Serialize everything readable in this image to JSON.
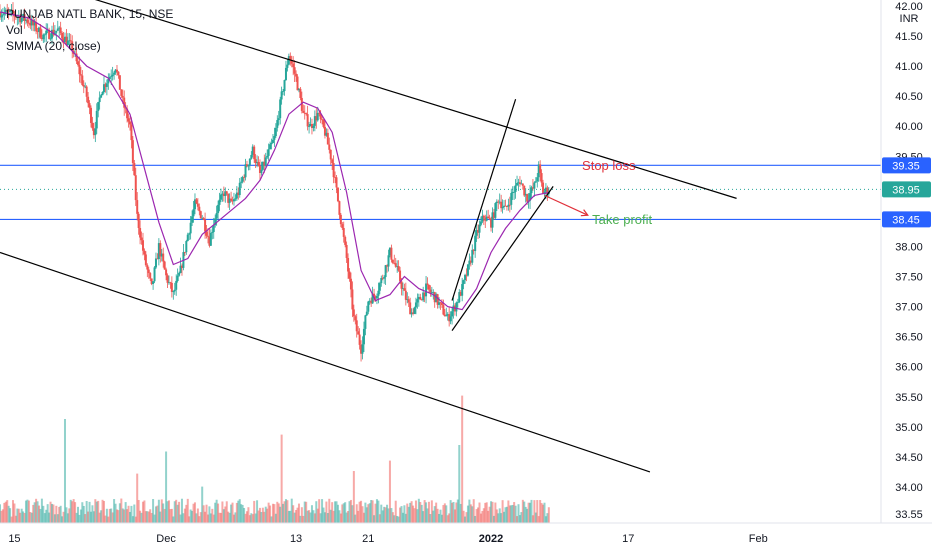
{
  "legend": {
    "symbol": "PUNJAB NATL BANK, 15, NSE",
    "vol": "Vol",
    "smma": "SMMA (20, close)"
  },
  "colors": {
    "up": "#26a69a",
    "down": "#ef5350",
    "smma": "#9c27b0",
    "hline": "#2962ff",
    "trend": "#000000",
    "stop_loss": "#e0303a",
    "take_profit": "#4caf50",
    "arrow": "#e0303a",
    "current_badge": "#26a69a",
    "level_badge": "#2962ff"
  },
  "chart_data": {
    "type": "candlestick",
    "price_axis": {
      "unit": "INR",
      "ticks": [
        "42.00",
        "41.50",
        "41.00",
        "40.50",
        "40.00",
        "39.50",
        "39.00",
        "38.50",
        "38.00",
        "37.50",
        "37.00",
        "36.50",
        "36.00",
        "35.50",
        "35.00",
        "34.50",
        "34.00",
        "33.55"
      ],
      "tick_values": [
        42.0,
        41.5,
        41.0,
        40.5,
        40.0,
        39.5,
        39.0,
        38.5,
        38.0,
        37.5,
        37.0,
        36.5,
        36.0,
        35.5,
        35.0,
        34.5,
        34.0,
        33.55
      ],
      "range": [
        33.4,
        42.1
      ]
    },
    "time_axis": {
      "labels": [
        "15",
        "Dec",
        "13",
        "21",
        "2022",
        "17",
        "Feb"
      ],
      "positions": [
        0,
        10.5,
        19.5,
        24.5,
        33,
        42.5,
        51.5
      ],
      "range": [
        -1,
        60
      ]
    },
    "price_badges": [
      {
        "label": "39.35",
        "value": 39.35,
        "kind": "level"
      },
      {
        "label": "38.95",
        "value": 38.95,
        "kind": "current"
      },
      {
        "label": "38.45",
        "value": 38.45,
        "kind": "level"
      }
    ],
    "horizontal_levels": [
      39.35,
      38.45
    ],
    "current_price": 38.95,
    "price_path": [
      [
        -1,
        41.9
      ],
      [
        0,
        41.85
      ],
      [
        1,
        41.75
      ],
      [
        2,
        41.5
      ],
      [
        3,
        41.6
      ],
      [
        4,
        41.3
      ],
      [
        5,
        40.5
      ],
      [
        5.5,
        39.9
      ],
      [
        6,
        40.6
      ],
      [
        7,
        41.0
      ],
      [
        7.5,
        40.4
      ],
      [
        8,
        40.0
      ],
      [
        8.5,
        38.5
      ],
      [
        9,
        37.8
      ],
      [
        9.5,
        37.3
      ],
      [
        10,
        38.0
      ],
      [
        10.5,
        37.5
      ],
      [
        11,
        37.2
      ],
      [
        11.5,
        37.6
      ],
      [
        12,
        38.2
      ],
      [
        12.5,
        38.7
      ],
      [
        13,
        38.5
      ],
      [
        13.5,
        38.1
      ],
      [
        14,
        38.6
      ],
      [
        14.5,
        38.9
      ],
      [
        15,
        38.7
      ],
      [
        15.5,
        38.9
      ],
      [
        16,
        39.3
      ],
      [
        16.5,
        39.6
      ],
      [
        17,
        39.2
      ],
      [
        17.5,
        39.5
      ],
      [
        18,
        39.8
      ],
      [
        18.5,
        40.5
      ],
      [
        19,
        41.2
      ],
      [
        19.5,
        40.8
      ],
      [
        20,
        40.2
      ],
      [
        20.5,
        40.0
      ],
      [
        21,
        40.2
      ],
      [
        21.5,
        39.9
      ],
      [
        22,
        39.4
      ],
      [
        22.5,
        38.6
      ],
      [
        23,
        37.8
      ],
      [
        23.5,
        36.8
      ],
      [
        24,
        36.3
      ],
      [
        24.5,
        37.1
      ],
      [
        25,
        37.2
      ],
      [
        25.5,
        37.5
      ],
      [
        26,
        37.9
      ],
      [
        26.5,
        37.6
      ],
      [
        27,
        37.2
      ],
      [
        27.5,
        36.9
      ],
      [
        28,
        37.1
      ],
      [
        28.5,
        37.3
      ],
      [
        29,
        37.2
      ],
      [
        29.5,
        37.0
      ],
      [
        30,
        36.8
      ],
      [
        30.5,
        37.0
      ],
      [
        31,
        37.3
      ],
      [
        31.5,
        37.7
      ],
      [
        32,
        38.2
      ],
      [
        32.5,
        38.5
      ],
      [
        33,
        38.4
      ],
      [
        33.5,
        38.8
      ],
      [
        34,
        38.6
      ],
      [
        34.5,
        38.9
      ],
      [
        35,
        39.1
      ],
      [
        35.5,
        38.8
      ],
      [
        36,
        39.0
      ],
      [
        36.3,
        39.3
      ],
      [
        36.6,
        38.9
      ],
      [
        37,
        38.95
      ]
    ],
    "smma": [
      [
        -1,
        41.9
      ],
      [
        1,
        41.8
      ],
      [
        3,
        41.5
      ],
      [
        5,
        41.0
      ],
      [
        6.5,
        40.8
      ],
      [
        8,
        40.2
      ],
      [
        9,
        39.3
      ],
      [
        10,
        38.4
      ],
      [
        11,
        37.7
      ],
      [
        12,
        37.8
      ],
      [
        13,
        38.2
      ],
      [
        14,
        38.4
      ],
      [
        15,
        38.6
      ],
      [
        16,
        38.8
      ],
      [
        17,
        39.1
      ],
      [
        18,
        39.6
      ],
      [
        19,
        40.2
      ],
      [
        20,
        40.4
      ],
      [
        21,
        40.3
      ],
      [
        22,
        39.9
      ],
      [
        23,
        38.9
      ],
      [
        24,
        37.6
      ],
      [
        25,
        37.1
      ],
      [
        26,
        37.2
      ],
      [
        27,
        37.5
      ],
      [
        28,
        37.3
      ],
      [
        29,
        37.2
      ],
      [
        30,
        37.0
      ],
      [
        31,
        36.95
      ],
      [
        32,
        37.3
      ],
      [
        33,
        37.9
      ],
      [
        34,
        38.3
      ],
      [
        35,
        38.6
      ],
      [
        36,
        38.85
      ],
      [
        37,
        38.9
      ]
    ],
    "trend_lines": [
      {
        "from": [
          -1,
          42.6
        ],
        "to": [
          50,
          38.8
        ]
      },
      {
        "from": [
          -1,
          37.9
        ],
        "to": [
          44,
          34.25
        ]
      },
      {
        "from": [
          30.3,
          37.1
        ],
        "to": [
          34.7,
          40.45
        ]
      },
      {
        "from": [
          30.3,
          36.6
        ],
        "to": [
          37.3,
          39.0
        ]
      }
    ],
    "annotations": [
      {
        "text": "Stop loss",
        "x": 39.3,
        "y": 39.35,
        "color": "stop_loss"
      },
      {
        "text": "Take profit",
        "x": 40.0,
        "y": 38.45,
        "color": "take_profit"
      }
    ],
    "arrow": {
      "from": [
        36.7,
        38.85
      ],
      "to": [
        39.7,
        38.52
      ]
    },
    "volume_range": [
      0,
      100
    ],
    "volume_spikes": [
      [
        3.5,
        80
      ],
      [
        8.5,
        38
      ],
      [
        10.5,
        55
      ],
      [
        18.5,
        68
      ],
      [
        23.5,
        40
      ],
      [
        31,
        98
      ],
      [
        26,
        48
      ],
      [
        13,
        28
      ],
      [
        30.8,
        60
      ]
    ],
    "volume_base_level": 14
  }
}
